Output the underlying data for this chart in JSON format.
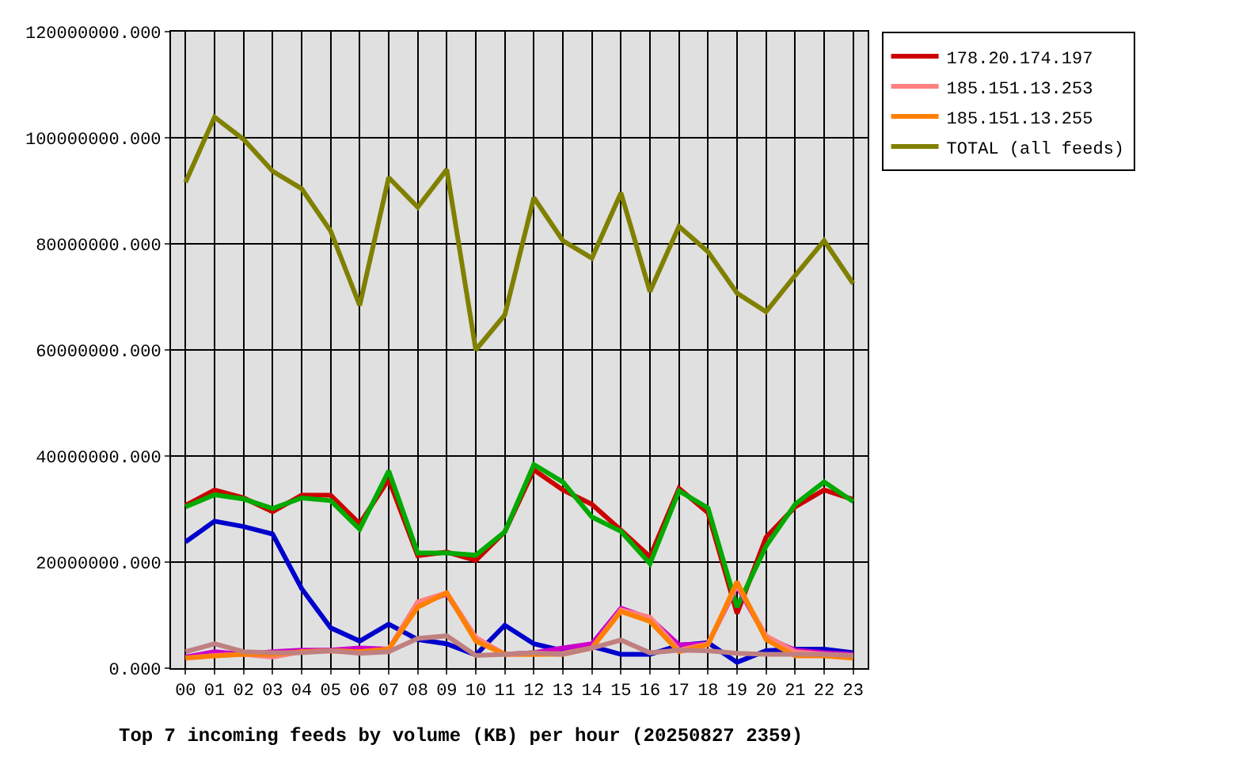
{
  "chart_data": {
    "type": "line",
    "title": "Top 7 incoming feeds by volume (KB) per hour (20250827 2359)",
    "categories": [
      "00",
      "01",
      "02",
      "03",
      "04",
      "05",
      "06",
      "07",
      "08",
      "09",
      "10",
      "11",
      "12",
      "13",
      "14",
      "15",
      "16",
      "17",
      "18",
      "19",
      "20",
      "21",
      "22",
      "23"
    ],
    "ylim": [
      0,
      120000000
    ],
    "yticks": [
      {
        "value": 0,
        "label": "0.000"
      },
      {
        "value": 20000000,
        "label": "20000000.000"
      },
      {
        "value": 40000000,
        "label": "40000000.000"
      },
      {
        "value": 60000000,
        "label": "60000000.000"
      },
      {
        "value": 80000000,
        "label": "80000000.000"
      },
      {
        "value": 100000000,
        "label": "100000000.000"
      },
      {
        "value": 120000000,
        "label": "120000000.000"
      }
    ],
    "grid": true,
    "legend": "top right",
    "marker": "none",
    "line_style": "solid",
    "series": [
      {
        "name": "178.20.174.197",
        "color": "#cc0000",
        "values": [
          30700000,
          33600000,
          32100000,
          29500000,
          32600000,
          32600000,
          27200000,
          35600000,
          21200000,
          21900000,
          20300000,
          25700000,
          37400000,
          33600000,
          30900000,
          26000000,
          21000000,
          33900000,
          29300000,
          10300000,
          24700000,
          30400000,
          33600000,
          31800000
        ]
      },
      {
        "color": "#00aa00",
        "values": [
          30400000,
          32700000,
          31900000,
          30100000,
          32100000,
          31600000,
          26200000,
          37200000,
          21700000,
          21700000,
          21300000,
          25700000,
          38400000,
          35100000,
          28500000,
          25800000,
          19700000,
          33400000,
          30200000,
          11500000,
          23000000,
          30900000,
          35100000,
          31400000
        ]
      },
      {
        "color": "#0000cc",
        "values": [
          23800000,
          27700000,
          26700000,
          25300000,
          15000000,
          7600000,
          5100000,
          8300000,
          5400000,
          4600000,
          2500000,
          8100000,
          4600000,
          3300000,
          4100000,
          2600000,
          2600000,
          4300000,
          4800000,
          1100000,
          3300000,
          3600000,
          3600000,
          2900000
        ]
      },
      {
        "color": "#cc00cc",
        "values": [
          2100000,
          3100000,
          2600000,
          3100000,
          3400000,
          3400000,
          3800000,
          3600000,
          12000000,
          14000000,
          5600000,
          2600000,
          2900000,
          3800000,
          4600000,
          11300000,
          9400000,
          4400000,
          4600000,
          15500000,
          5800000,
          3400000,
          2900000,
          2600000
        ]
      },
      {
        "name": "185.151.13.253",
        "color": "#ff8080",
        "values": [
          1900000,
          2400000,
          2600000,
          2100000,
          3100000,
          3300000,
          3100000,
          3600000,
          12500000,
          14200000,
          5800000,
          2600000,
          2600000,
          2800000,
          3800000,
          11000000,
          9600000,
          3400000,
          4600000,
          15700000,
          6100000,
          3100000,
          2600000,
          2300000
        ]
      },
      {
        "name": "185.151.13.255",
        "color": "#ff8000",
        "values": [
          1900000,
          2300000,
          2600000,
          2600000,
          3100000,
          3300000,
          3100000,
          3600000,
          11500000,
          14200000,
          5100000,
          2600000,
          2600000,
          2600000,
          3800000,
          10700000,
          8800000,
          3100000,
          4400000,
          16300000,
          5400000,
          2300000,
          2300000,
          1900000
        ]
      },
      {
        "color": "#c08080",
        "values": [
          3100000,
          4600000,
          3100000,
          2900000,
          2900000,
          3300000,
          2800000,
          3100000,
          5600000,
          6100000,
          2400000,
          2600000,
          2900000,
          2600000,
          3800000,
          5300000,
          2900000,
          3400000,
          3300000,
          2800000,
          2600000,
          2600000,
          2600000,
          2400000
        ]
      },
      {
        "name": "TOTAL (all feeds)",
        "color": "#808000",
        "values": [
          91600000,
          103900000,
          99700000,
          93700000,
          90400000,
          82400000,
          68400000,
          92500000,
          86900000,
          94000000,
          60000000,
          66600000,
          88700000,
          80600000,
          77300000,
          89600000,
          71000000,
          83300000,
          78500000,
          70700000,
          67200000,
          74000000,
          80600000,
          72500000
        ]
      }
    ]
  }
}
